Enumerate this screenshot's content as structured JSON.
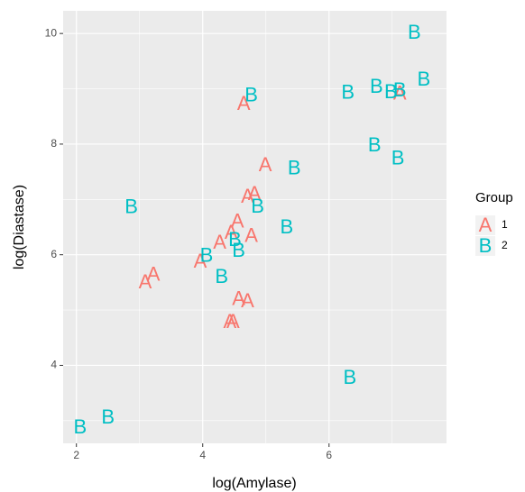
{
  "chart_data": {
    "type": "scatter",
    "x_label": "log(Amylase)",
    "y_label": "log(Diastase)",
    "legend_title": "Group",
    "legend": "right",
    "xlim": [
      1.79,
      7.86
    ],
    "ylim": [
      2.59,
      10.41
    ],
    "xticks": [
      2,
      4,
      6
    ],
    "yticks": [
      4,
      6,
      8,
      10
    ],
    "grid": true,
    "series": [
      {
        "name": "1",
        "marker": "A",
        "color": "#F8766D",
        "x": [
          4.65,
          7.12,
          4.99,
          4.71,
          4.82,
          4.55,
          4.27,
          4.45,
          4.77,
          3.96,
          3.22,
          3.09,
          4.57,
          4.71,
          4.43,
          4.48
        ],
        "values": [
          8.73,
          8.92,
          7.62,
          7.05,
          7.1,
          6.6,
          6.22,
          6.4,
          6.34,
          5.88,
          5.64,
          5.5,
          5.2,
          5.16,
          4.79,
          4.79
        ]
      },
      {
        "name": "2",
        "marker": "B",
        "color": "#00BFC4",
        "x": [
          7.35,
          7.5,
          7.12,
          6.75,
          6.98,
          6.3,
          4.77,
          6.72,
          7.09,
          5.45,
          2.87,
          4.87,
          5.33,
          4.06,
          4.51,
          4.57,
          4.3,
          6.33,
          2.5,
          2.06
        ],
        "values": [
          10.02,
          9.17,
          8.97,
          9.04,
          8.94,
          8.93,
          8.88,
          7.98,
          7.74,
          7.56,
          6.86,
          6.87,
          6.5,
          5.98,
          6.27,
          6.07,
          5.6,
          3.78,
          3.06,
          2.88
        ]
      }
    ]
  }
}
